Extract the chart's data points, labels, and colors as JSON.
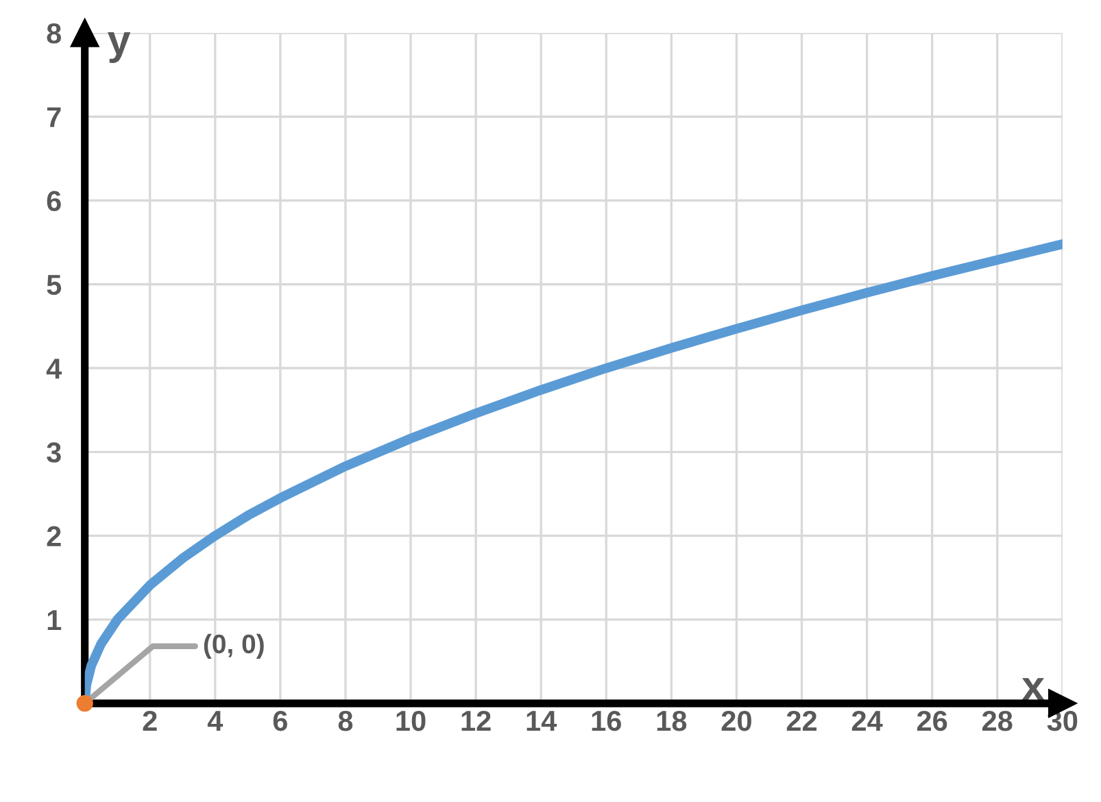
{
  "chart_data": {
    "type": "line",
    "xlabel": "x",
    "ylabel": "y",
    "series": [
      {
        "color": "#5b9bd5",
        "marker": "none",
        "x": [
          0,
          0.05,
          0.2,
          0.5,
          1,
          2,
          3,
          4,
          5,
          6,
          8,
          10,
          12,
          14,
          16,
          18,
          20,
          22,
          24,
          26,
          28,
          30
        ],
        "values": [
          0,
          0.22,
          0.45,
          0.71,
          1,
          1.41,
          1.73,
          2,
          2.24,
          2.45,
          2.83,
          3.16,
          3.46,
          3.74,
          4,
          4.24,
          4.47,
          4.69,
          4.9,
          5.1,
          5.29,
          5.48
        ]
      },
      {
        "type": "scatter",
        "marker": "circle",
        "color": "#ed7d31",
        "x": [
          0
        ],
        "values": [
          0
        ]
      }
    ],
    "annotations": [
      {
        "text": "(0, 0)",
        "x": 0,
        "y": 0
      }
    ],
    "xlim": [
      0,
      30
    ],
    "ylim": [
      0,
      8
    ],
    "xticks": [
      2,
      4,
      6,
      8,
      10,
      12,
      14,
      16,
      18,
      20,
      22,
      24,
      26,
      28,
      30
    ],
    "yticks": [
      1,
      2,
      3,
      4,
      5,
      6,
      7,
      8
    ],
    "grid": true,
    "line_style": "solid"
  }
}
